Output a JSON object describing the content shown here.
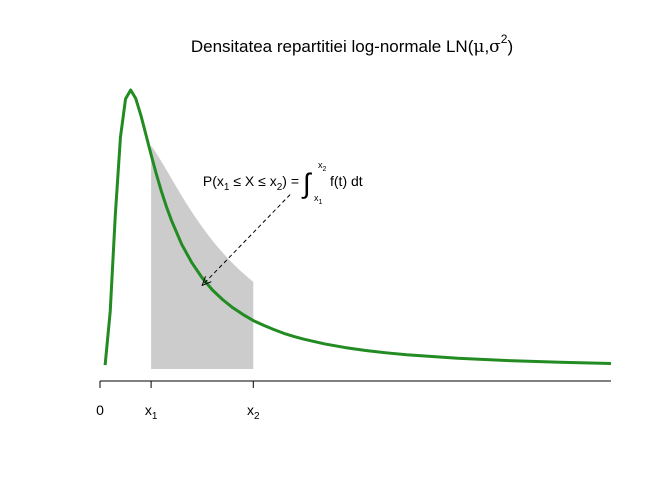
{
  "chart_data": {
    "type": "area",
    "title": {
      "prefix": "Densitatea repartitiei log-normale LN(",
      "mu": "μ",
      "comma": ",",
      "sigma": "σ",
      "sup": "2",
      "suffix": ")"
    },
    "xlabel": "",
    "ylabel": "",
    "grid": false,
    "legend": "none",
    "curve": {
      "name": "",
      "color": "#228B22",
      "x": [
        0.05,
        0.1,
        0.15,
        0.2,
        0.25,
        0.3,
        0.35,
        0.4,
        0.45,
        0.5,
        0.55,
        0.6,
        0.65,
        0.7,
        0.8,
        0.9,
        1.0,
        1.1,
        1.2,
        1.3,
        1.4,
        1.5,
        1.6,
        1.7,
        1.8,
        1.9,
        2.0,
        2.2,
        2.4,
        2.6,
        2.8,
        3.0,
        3.5,
        4.0,
        4.5,
        5.0
      ],
      "y": [
        0.011,
        0.162,
        0.434,
        0.651,
        0.759,
        0.784,
        0.76,
        0.713,
        0.658,
        0.602,
        0.549,
        0.5,
        0.456,
        0.417,
        0.35,
        0.298,
        0.256,
        0.222,
        0.195,
        0.172,
        0.153,
        0.136,
        0.123,
        0.111,
        0.1,
        0.0913,
        0.0834,
        0.0704,
        0.0602,
        0.0521,
        0.0455,
        0.0401,
        0.0301,
        0.0236,
        0.019,
        0.0156
      ]
    },
    "shaded_region": {
      "from": 0.5,
      "to": 1.5,
      "color": "#CCCCCC"
    },
    "xlim": [
      0,
      5
    ],
    "ylim": [
      0,
      0.784
    ],
    "x_ticks": [
      {
        "value": 0,
        "label": "0",
        "sub": ""
      },
      {
        "value": 0.5,
        "label": "x",
        "sub": "1"
      },
      {
        "value": 1.5,
        "label": "x",
        "sub": "2"
      }
    ],
    "annotation": {
      "lhs": {
        "p": "P(x",
        "s1": "1",
        "mid": " ≤ X ≤ x",
        "s2": "2",
        "end": ") ="
      },
      "integral_sign": "∫",
      "upper_limit": {
        "x": "x",
        "sub": "2"
      },
      "lower_limit": {
        "x": "x",
        "sub": "1"
      },
      "integrand": "f(t) dt",
      "arrow_tail": {
        "x": 1.86,
        "y": 0.49
      },
      "arrow_head": {
        "x": 1.0,
        "y": 0.235
      }
    }
  }
}
